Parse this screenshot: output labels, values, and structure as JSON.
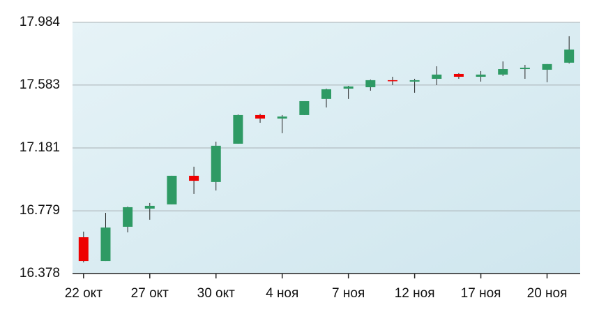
{
  "chart_data": {
    "type": "candlestick",
    "categories": [
      "22 окт",
      null,
      null,
      "27 окт",
      null,
      null,
      "30 окт",
      null,
      null,
      "4 ноя",
      null,
      null,
      "7 ноя",
      null,
      null,
      "12 ноя",
      null,
      null,
      "17 ноя",
      null,
      null,
      "20 ноя",
      null
    ],
    "open": [
      16.61,
      16.458,
      16.677,
      16.793,
      16.82,
      17.003,
      16.963,
      17.208,
      17.391,
      17.369,
      17.391,
      17.494,
      17.56,
      17.569,
      17.614,
      17.605,
      17.623,
      17.654,
      17.636,
      17.65,
      17.685,
      17.681,
      17.726
    ],
    "high": [
      16.646,
      16.766,
      16.806,
      16.829,
      17.003,
      17.061,
      17.221,
      17.395,
      17.4,
      17.391,
      17.48,
      17.56,
      17.578,
      17.618,
      17.636,
      17.623,
      17.703,
      17.659,
      17.672,
      17.734,
      17.712,
      17.717,
      17.895
    ],
    "low": [
      16.449,
      16.458,
      16.641,
      16.722,
      16.82,
      16.887,
      16.909,
      17.208,
      17.342,
      17.275,
      17.391,
      17.44,
      17.494,
      17.547,
      17.583,
      17.534,
      17.583,
      17.623,
      17.605,
      17.641,
      17.623,
      17.601,
      17.721
    ],
    "close": [
      16.458,
      16.672,
      16.802,
      16.811,
      17.003,
      16.971,
      17.195,
      17.391,
      17.369,
      17.382,
      17.48,
      17.556,
      17.574,
      17.614,
      17.609,
      17.614,
      17.65,
      17.636,
      17.65,
      17.685,
      17.694,
      17.717,
      17.81
    ],
    "up_color": "#2e9a64",
    "down_color": "#ee0000",
    "ylim": [
      16.378,
      17.984
    ],
    "yticks": [
      16.378,
      16.779,
      17.181,
      17.583,
      17.984
    ],
    "grid": true
  }
}
